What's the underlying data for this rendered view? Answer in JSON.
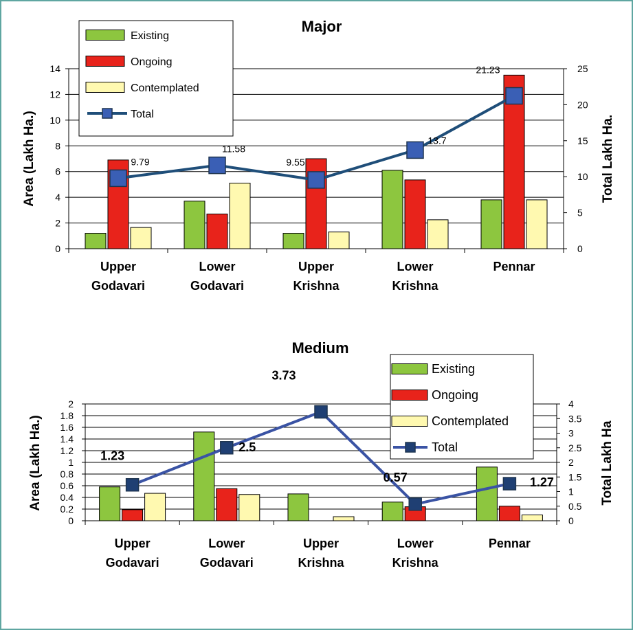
{
  "chart_data": [
    {
      "type": "bar",
      "title": "Major",
      "categories": [
        [
          "Upper",
          "Godavari"
        ],
        [
          "Lower",
          "Godavari"
        ],
        [
          "Upper",
          "Krishna"
        ],
        [
          "Lower",
          "Krishna"
        ],
        [
          "Pennar"
        ]
      ],
      "series": [
        {
          "name": "Existing",
          "color": "#8dc63f",
          "values": [
            1.2,
            3.7,
            1.2,
            6.1,
            3.8
          ]
        },
        {
          "name": "Ongoing",
          "color": "#e8231b",
          "values": [
            6.9,
            2.7,
            7.0,
            5.35,
            13.5
          ]
        },
        {
          "name": "Contemplated",
          "color": "#fff9b0",
          "values": [
            1.65,
            5.1,
            1.3,
            2.25,
            3.8
          ]
        }
      ],
      "line": {
        "name": "Total",
        "type": "line",
        "axis": "right",
        "color": "#1f4e79",
        "marker_color": "#3a5fb5",
        "values": [
          9.79,
          11.58,
          9.55,
          13.7,
          21.23
        ],
        "labels": [
          "9.79",
          "11.58",
          "9.55",
          "13.7",
          "21.23"
        ]
      },
      "ylabel": "Area (Lakh Ha.)",
      "y2label": "Total Lakh Ha.",
      "ylim": [
        0,
        14
      ],
      "y2lim": [
        0,
        25
      ],
      "yticks": [
        "0",
        "2",
        "4",
        "6",
        "8",
        "10",
        "12",
        "14"
      ],
      "y2ticks": [
        "0",
        "5",
        "10",
        "15",
        "20",
        "25"
      ],
      "grid": true,
      "legend": "top-left"
    },
    {
      "type": "bar",
      "title": "Medium",
      "categories": [
        [
          "Upper",
          "Godavari"
        ],
        [
          "Lower",
          "Godavari"
        ],
        [
          "Upper",
          "Krishna"
        ],
        [
          "Lower",
          "Krishna"
        ],
        [
          "Pennar"
        ]
      ],
      "series": [
        {
          "name": "Existing",
          "color": "#8dc63f",
          "values": [
            0.58,
            1.52,
            0.46,
            0.32,
            0.92
          ]
        },
        {
          "name": "Ongoing",
          "color": "#e8231b",
          "values": [
            0.19,
            0.55,
            0,
            0.24,
            0.25
          ]
        },
        {
          "name": "Contemplated",
          "color": "#fff9b0",
          "values": [
            0.47,
            0.45,
            0.07,
            0,
            0.1
          ]
        }
      ],
      "line": {
        "name": "Total",
        "type": "line",
        "axis": "right",
        "color": "#3a53a4",
        "marker_color": "#1f3f73",
        "values": [
          1.23,
          2.5,
          3.73,
          0.57,
          1.27
        ],
        "labels": [
          "1.23",
          "2.5",
          "3.73",
          "0.57",
          "1.27"
        ]
      },
      "ylabel": "Area (Lakh Ha.)",
      "y2label": "Total Lakh Ha",
      "ylim": [
        0,
        2
      ],
      "y2lim": [
        0,
        4
      ],
      "yticks": [
        "0",
        "0.2",
        "0.4",
        "0.6",
        "0.8",
        "1",
        "1.2",
        "1.4",
        "1.6",
        "1.8",
        "2"
      ],
      "y2ticks": [
        "0",
        "0.5",
        "1",
        "1.5",
        "2",
        "2.5",
        "3",
        "3.5",
        "4"
      ],
      "grid": true,
      "legend": "top-right"
    }
  ]
}
